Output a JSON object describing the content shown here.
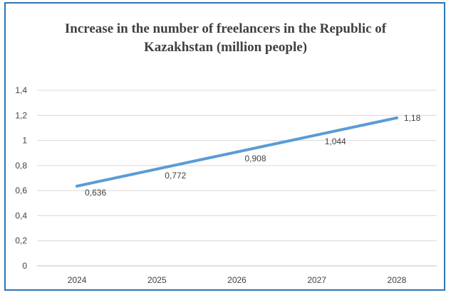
{
  "chart_data": {
    "type": "line",
    "title_line1": "Increase in the number of freelancers in the Republic of",
    "title_line2": "Kazakhstan (million people)",
    "categories": [
      "2024",
      "2025",
      "2026",
      "2027",
      "2028"
    ],
    "series": [
      {
        "values": [
          0.636,
          0.772,
          0.908,
          1.044,
          1.18
        ],
        "labels": [
          "0,636",
          "0,772",
          "0,908",
          "1,044",
          "1,18"
        ],
        "color": "#5b9bd5"
      }
    ],
    "yticks": [
      "0",
      "0,2",
      "0,4",
      "0,6",
      "0,8",
      "1",
      "1,2",
      "1,4"
    ],
    "ylim": [
      0,
      1.4
    ],
    "grid": true,
    "legend": "none"
  }
}
